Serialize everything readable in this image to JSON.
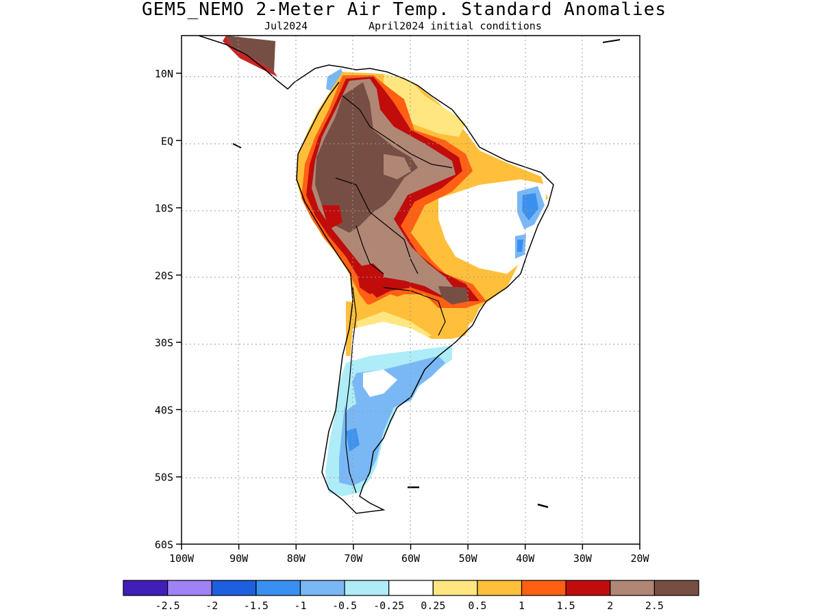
{
  "title": "GEM5_NEMO 2-Meter Air Temp. Standard Anomalies",
  "subtitle_left": "Jul2024",
  "subtitle_right": "April2024 initial conditions",
  "axes": {
    "lat_labels": [
      "10N",
      "EQ",
      "10S",
      "20S",
      "30S",
      "40S",
      "50S",
      "60S"
    ],
    "lat_values": [
      10,
      0,
      -10,
      -20,
      -30,
      -40,
      -50,
      -60
    ],
    "lon_labels": [
      "100W",
      "90W",
      "80W",
      "70W",
      "60W",
      "50W",
      "40W",
      "30W",
      "20W"
    ],
    "lon_values": [
      -100,
      -90,
      -80,
      -70,
      -60,
      -50,
      -40,
      -30,
      -20
    ],
    "lat_range": [
      -60,
      15.6
    ],
    "lon_range": [
      -100,
      -20
    ],
    "grid": "dotted"
  },
  "colorbar": {
    "colors": [
      "#3f1fb8",
      "#9f82f5",
      "#1e5fe0",
      "#3a90f0",
      "#7ab8f5",
      "#aeedf7",
      "#ffffff",
      "#ffe680",
      "#ffbf3a",
      "#ff6014",
      "#c10c0c",
      "#b08674",
      "#774e43"
    ],
    "labels": [
      "-2.5",
      "-2",
      "-1.5",
      "-1",
      "-0.5",
      "-0.25",
      "0.25",
      "0.5",
      "1",
      "1.5",
      "2",
      "2.5"
    ]
  }
}
